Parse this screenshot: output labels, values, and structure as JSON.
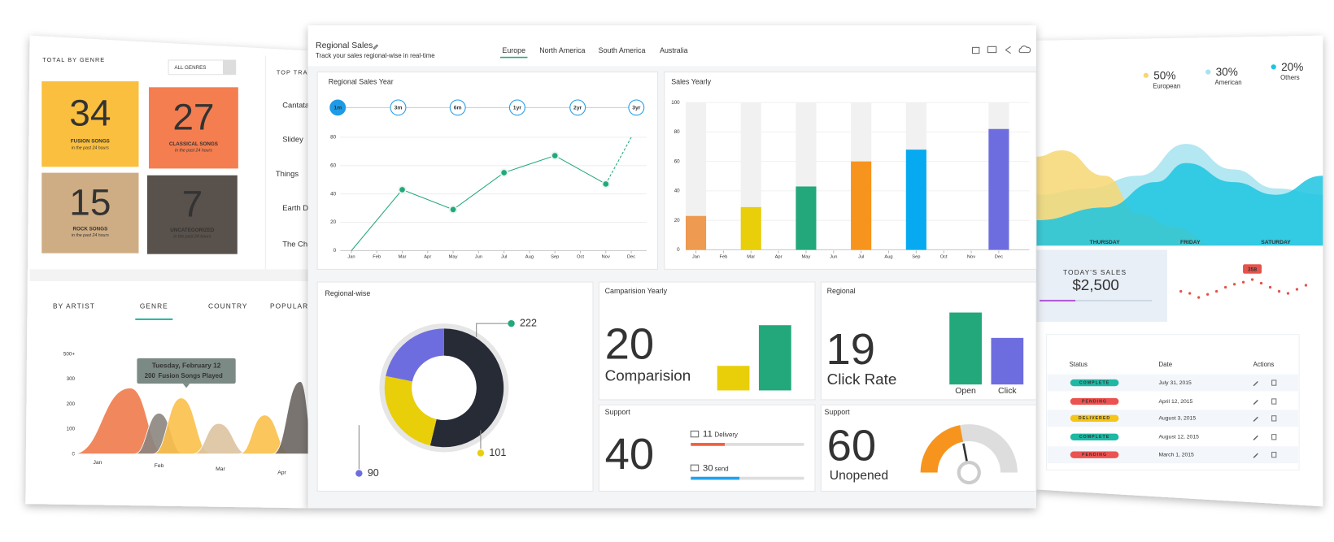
{
  "left_panel": {
    "genre_title": "TOTAL BY GENRE",
    "genre_filter": "ALL GENRES",
    "tracks_title": "TOP TRACKS",
    "tiles": [
      {
        "count": 34,
        "label": "FUSION SONGS",
        "note": "in the past 24 hours",
        "color": "#fbbf3f"
      },
      {
        "count": 27,
        "label": "CLASSICAL SONGS",
        "note": "in the past 24 hours",
        "color": "#f47e50"
      },
      {
        "count": 15,
        "label": "ROCK SONGS",
        "note": "in the past 24 hours",
        "color": "#cfad84"
      },
      {
        "count": 7,
        "label": "UNCATEGORIZED",
        "note": "in the past 24 hours",
        "color": "#59514b"
      }
    ],
    "tracks": [
      "Cantata",
      "Slidey",
      "Things",
      "Earth D",
      "The Ch"
    ],
    "tabs": [
      {
        "label": "BY ARTIST"
      },
      {
        "label": "GENRE",
        "active": true
      },
      {
        "label": "COUNTRY"
      },
      {
        "label": "POPULAR"
      }
    ],
    "chart": {
      "type": "area",
      "xlim": [
        -0.55,
        3.55
      ],
      "xticks": [
        {
          "value": 0,
          "label": "Jan"
        },
        {
          "value": 1,
          "label": "Feb"
        },
        {
          "value": 2,
          "label": "Mar"
        },
        {
          "value": 3,
          "label": "Apr"
        }
      ],
      "ylim": [
        0,
        400
      ],
      "yticks": [
        0,
        100,
        200,
        300,
        {
          "value": 400,
          "label": "500+"
        }
      ],
      "series": [
        {
          "color": "#f07a4a",
          "x": [
            -0.4,
            0.53,
            1.1
          ],
          "values": [
            0,
            264,
            0
          ]
        },
        {
          "color": "#8c8580",
          "x": [
            0.6,
            1.0,
            1.4
          ],
          "values": [
            0,
            163,
            0
          ]
        },
        {
          "color": "#fbc04a",
          "x": [
            0.9,
            1.36,
            1.85
          ],
          "values": [
            0,
            224,
            0
          ]
        },
        {
          "color": "#dcc3a0",
          "x": [
            1.55,
            1.97,
            2.45
          ],
          "values": [
            0,
            122,
            0
          ]
        },
        {
          "color": "#fbc04a",
          "x": [
            2.3,
            2.72,
            3.15
          ],
          "values": [
            0,
            156,
            0
          ]
        },
        {
          "color": "#6b6560",
          "x": [
            2.85,
            3.3,
            3.55
          ],
          "values": [
            0,
            290,
            0
          ]
        }
      ]
    },
    "tooltip": {
      "title": "Tuesday, February 12",
      "value": 200,
      "text": "Fusion Songs Played"
    }
  },
  "main": {
    "title": "Regional Sales",
    "subtitle": "Track your sales regional-wise in real-time",
    "tabs": [
      {
        "label": "Europe",
        "active": true
      },
      {
        "label": "North America"
      },
      {
        "label": "South America"
      },
      {
        "label": "Australia"
      }
    ],
    "line_card": {
      "title": "Regional Sales Year",
      "ranges": [
        {
          "label": "1m",
          "active": true
        },
        {
          "label": "3m"
        },
        {
          "label": "6m"
        },
        {
          "label": "1yr"
        },
        {
          "label": "2yr"
        },
        {
          "label": "3yr"
        }
      ],
      "chart": {
        "type": "line",
        "categories": [
          "Jan",
          "Feb",
          "Mar",
          "Apr",
          "May",
          "Jun",
          "Jul",
          "Aug",
          "Sep",
          "Oct",
          "Nov",
          "Dec"
        ],
        "ylim": [
          0,
          80
        ],
        "yticks": [
          0,
          20,
          40,
          60,
          80
        ],
        "series": [
          {
            "color": "#22a87a",
            "x": [
              "Jan",
              "Mar",
              "May",
              "Jul",
              "Sep",
              "Nov",
              "Dec"
            ],
            "values": [
              0,
              43,
              29,
              55,
              67,
              47,
              80
            ]
          }
        ]
      }
    },
    "bar_card": {
      "title": "Sales Yearly",
      "chart": {
        "type": "bar",
        "categories": [
          "Jan",
          "Feb",
          "Mar",
          "Apr",
          "May",
          "Jun",
          "Jul",
          "Aug",
          "Sep",
          "Oct",
          "Nov",
          "Dec"
        ],
        "ylim": [
          0,
          100
        ],
        "yticks": [
          0,
          20,
          40,
          60,
          80,
          100
        ],
        "series": [
          {
            "x": [
              "Jan",
              "Mar",
              "May",
              "Jul",
              "Sep",
              "Dec"
            ],
            "values": [
              23,
              29,
              43,
              60,
              68,
              82
            ],
            "colors": [
              "#ee9a50",
              "#e8cf0a",
              "#22a87a",
              "#f7941d",
              "#07aaf0",
              "#6e6de0"
            ]
          }
        ]
      }
    },
    "donut_card": {
      "title": "Regional-wise",
      "chart": {
        "type": "pie",
        "values": [
          222,
          101,
          90
        ],
        "colors": [
          "#272b36",
          "#e8cf0a",
          "#6e6de0"
        ],
        "label_colors": [
          "#22a87a",
          "#e8cf0a",
          "#6e6de0"
        ]
      }
    },
    "comparison_card": {
      "title": "Camparision Yearly",
      "value": 20,
      "label": "Comparision",
      "chart": {
        "type": "bar",
        "values": [
          29,
          77
        ],
        "colors": [
          "#e8cf0a",
          "#22a87a"
        ]
      }
    },
    "regional_card": {
      "title": "Regional",
      "value": 19,
      "label": "Click Rate",
      "chart": {
        "type": "bar",
        "categories": [
          "Open",
          "Click"
        ],
        "values": [
          85,
          55
        ],
        "colors": [
          "#22a87a",
          "#6e6de0"
        ]
      }
    },
    "support_card": {
      "title": "Support",
      "value": 40,
      "items": [
        {
          "count": 11,
          "label": "Delivery",
          "progress": 30,
          "color": "#f0603c"
        },
        {
          "count": 30,
          "label": "send",
          "progress": 43,
          "color": "#1ea4f0"
        }
      ]
    },
    "gauge_card": {
      "title": "Support",
      "value": 60,
      "label": "Unopened",
      "gauge": {
        "type": "gauge",
        "value": 44,
        "color": "#f7941d"
      }
    }
  },
  "right_panel": {
    "legend": [
      {
        "value": 50,
        "value_label": "50%",
        "name": "European",
        "color": "#f7d774"
      },
      {
        "value": 30,
        "value_label": "30%",
        "name": "American",
        "color": "#a6e3f0"
      },
      {
        "value": 20,
        "value_label": "20%",
        "name": "Others",
        "color": "#1cc4e0"
      }
    ],
    "chart": {
      "type": "area",
      "xlim": [
        -0.8,
        2.55
      ],
      "xticks": [
        {
          "value": 0,
          "label": "THURSDAY"
        },
        {
          "value": 1,
          "label": "FRIDAY"
        },
        {
          "value": 2,
          "label": "SATURDAY"
        }
      ],
      "ylim": [
        0,
        100
      ],
      "series": [
        {
          "color": "#a6e3f0",
          "x": [
            -0.8,
            -0.2,
            0.4,
            0.95,
            1.5,
            2.0,
            2.55
          ],
          "values": [
            40,
            45,
            55,
            80,
            60,
            45,
            40
          ]
        },
        {
          "color": "#f7d774",
          "x": [
            -0.8,
            -0.5,
            0,
            0.4,
            0.8,
            1.3
          ],
          "values": [
            70,
            75,
            55,
            25,
            15,
            0
          ]
        },
        {
          "color": "#1cc4e0",
          "x": [
            -0.8,
            0,
            0.6,
            0.95,
            1.5,
            2.0,
            2.55
          ],
          "values": [
            20,
            30,
            50,
            65,
            50,
            40,
            55
          ]
        }
      ]
    },
    "sales": {
      "title": "TODAY'S SALES",
      "value": "$2,500"
    },
    "scatter": {
      "type": "scatter",
      "ylim": [
        150,
        400
      ],
      "color": "#e5534b",
      "values": [
        300,
        290,
        270,
        285,
        300,
        320,
        335,
        345,
        358,
        340,
        320,
        300,
        290,
        310,
        330
      ]
    },
    "table": {
      "columns": [
        "Status",
        "Date",
        "Actions"
      ],
      "rows": [
        [
          "COMPLETE",
          "July 31, 2015"
        ],
        [
          "PENDING",
          "April 12, 2015"
        ],
        [
          "DELIVERED",
          "August 3, 2015"
        ],
        [
          "COMPLETE",
          "August 12, 2015"
        ],
        [
          "PENDING",
          "March 1, 2015"
        ]
      ],
      "badge_colors": {
        "COMPLETE": "#1fb8a4",
        "PENDING": "#ea5350",
        "DELIVERED": "#f5c518"
      }
    }
  }
}
